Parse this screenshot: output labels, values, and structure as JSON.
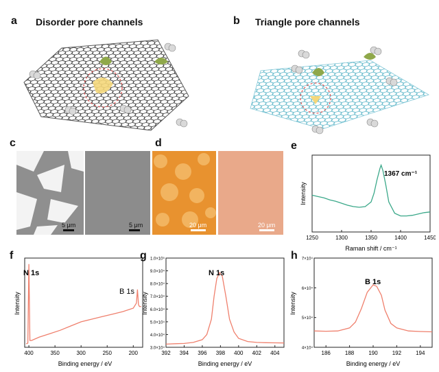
{
  "panels": {
    "a": {
      "label": "a",
      "title": "Disorder pore channels"
    },
    "b": {
      "label": "b",
      "title": "Triangle pore channels"
    },
    "c": {
      "label": "c",
      "scale_left": "5 μm",
      "scale_right": "5 μm"
    },
    "d": {
      "label": "d",
      "scale_left": "20 μm",
      "scale_right": "20 μm"
    },
    "e": {
      "label": "e"
    },
    "f": {
      "label": "f"
    },
    "g": {
      "label": "g"
    },
    "h": {
      "label": "h"
    }
  },
  "colors": {
    "raman": "#3aa889",
    "xps": "#ef7f6c",
    "bn_lattice": "#5fb7c9",
    "graphene": "#444444",
    "optical_orange": "#f0a23a"
  },
  "chart_data": [
    {
      "id": "e",
      "type": "line",
      "xlabel": "Raman shift / cm⁻¹",
      "ylabel": "Intensity",
      "xlim": [
        1250,
        1450
      ],
      "xticks": [
        "1250",
        "1300",
        "1350",
        "1400",
        "1450"
      ],
      "annotation": "1367 cm⁻¹",
      "series": [
        {
          "x": [
            1250,
            1260,
            1270,
            1280,
            1290,
            1300,
            1310,
            1320,
            1330,
            1340,
            1350,
            1355,
            1360,
            1365,
            1367,
            1370,
            1375,
            1380,
            1390,
            1400,
            1410,
            1420,
            1430,
            1440,
            1450
          ],
          "y": [
            0.55,
            0.53,
            0.51,
            0.48,
            0.46,
            0.43,
            0.4,
            0.38,
            0.37,
            0.38,
            0.45,
            0.58,
            0.78,
            0.95,
            1.0,
            0.92,
            0.7,
            0.45,
            0.28,
            0.24,
            0.24,
            0.25,
            0.27,
            0.29,
            0.3
          ]
        }
      ]
    },
    {
      "id": "f",
      "type": "line",
      "xlabel": "Binding energy / eV",
      "ylabel": "Intensity",
      "xticks": [
        "400",
        "350",
        "300",
        "250",
        "200"
      ],
      "annotations": [
        "N 1s",
        "B 1s"
      ],
      "series": [
        {
          "x": [
            405,
            402,
            400,
            398,
            395,
            380,
            360,
            340,
            320,
            300,
            280,
            260,
            240,
            220,
            200,
            194,
            192,
            190,
            188,
            185
          ],
          "y": [
            0.04,
            0.05,
            0.98,
            0.08,
            0.08,
            0.12,
            0.16,
            0.2,
            0.25,
            0.3,
            0.33,
            0.36,
            0.39,
            0.42,
            0.46,
            0.52,
            0.68,
            0.5,
            0.48,
            0.48
          ]
        }
      ]
    },
    {
      "id": "g",
      "type": "line",
      "xlabel": "Binding energy / eV",
      "ylabel": "Intensity",
      "xlim": [
        392,
        405
      ],
      "xticks": [
        "392",
        "394",
        "396",
        "398",
        "400",
        "402",
        "404"
      ],
      "yticks": [
        "3.0×10⁴",
        "4.0×10⁴",
        "5.0×10⁴",
        "6.0×10⁴",
        "7.0×10⁴",
        "8.0×10⁴",
        "9.0×10⁴",
        "1.0×10⁵"
      ],
      "ylim": [
        30000,
        100000
      ],
      "annotation": "N 1s",
      "series": [
        {
          "x": [
            392,
            393,
            394,
            395,
            396,
            396.5,
            397,
            397.3,
            397.6,
            397.9,
            398.2,
            398.6,
            399,
            399.5,
            400,
            401,
            402,
            403,
            404,
            405
          ],
          "y": [
            32500,
            32800,
            33000,
            33800,
            36000,
            40000,
            52000,
            70000,
            84000,
            88500,
            86000,
            70000,
            52000,
            42000,
            37000,
            34500,
            33800,
            33600,
            33500,
            33400
          ]
        }
      ]
    },
    {
      "id": "h",
      "type": "line",
      "xlabel": "Binding energy / eV",
      "ylabel": "Intensity",
      "xlim": [
        185,
        195
      ],
      "xticks": [
        "186",
        "188",
        "190",
        "192",
        "194"
      ],
      "yticks": [
        "4×10⁴",
        "5×10⁴",
        "6×10⁴",
        "7×10⁴"
      ],
      "ylim": [
        40000,
        70000
      ],
      "annotation": "B 1s",
      "series": [
        {
          "x": [
            185,
            186,
            187,
            188,
            188.5,
            189,
            189.5,
            190,
            190.3,
            190.7,
            191,
            191.5,
            192,
            193,
            194,
            195
          ],
          "y": [
            45500,
            45400,
            45500,
            46500,
            48500,
            53000,
            58500,
            61000,
            60500,
            57500,
            52500,
            48000,
            46500,
            45500,
            45300,
            45200
          ]
        }
      ]
    }
  ]
}
